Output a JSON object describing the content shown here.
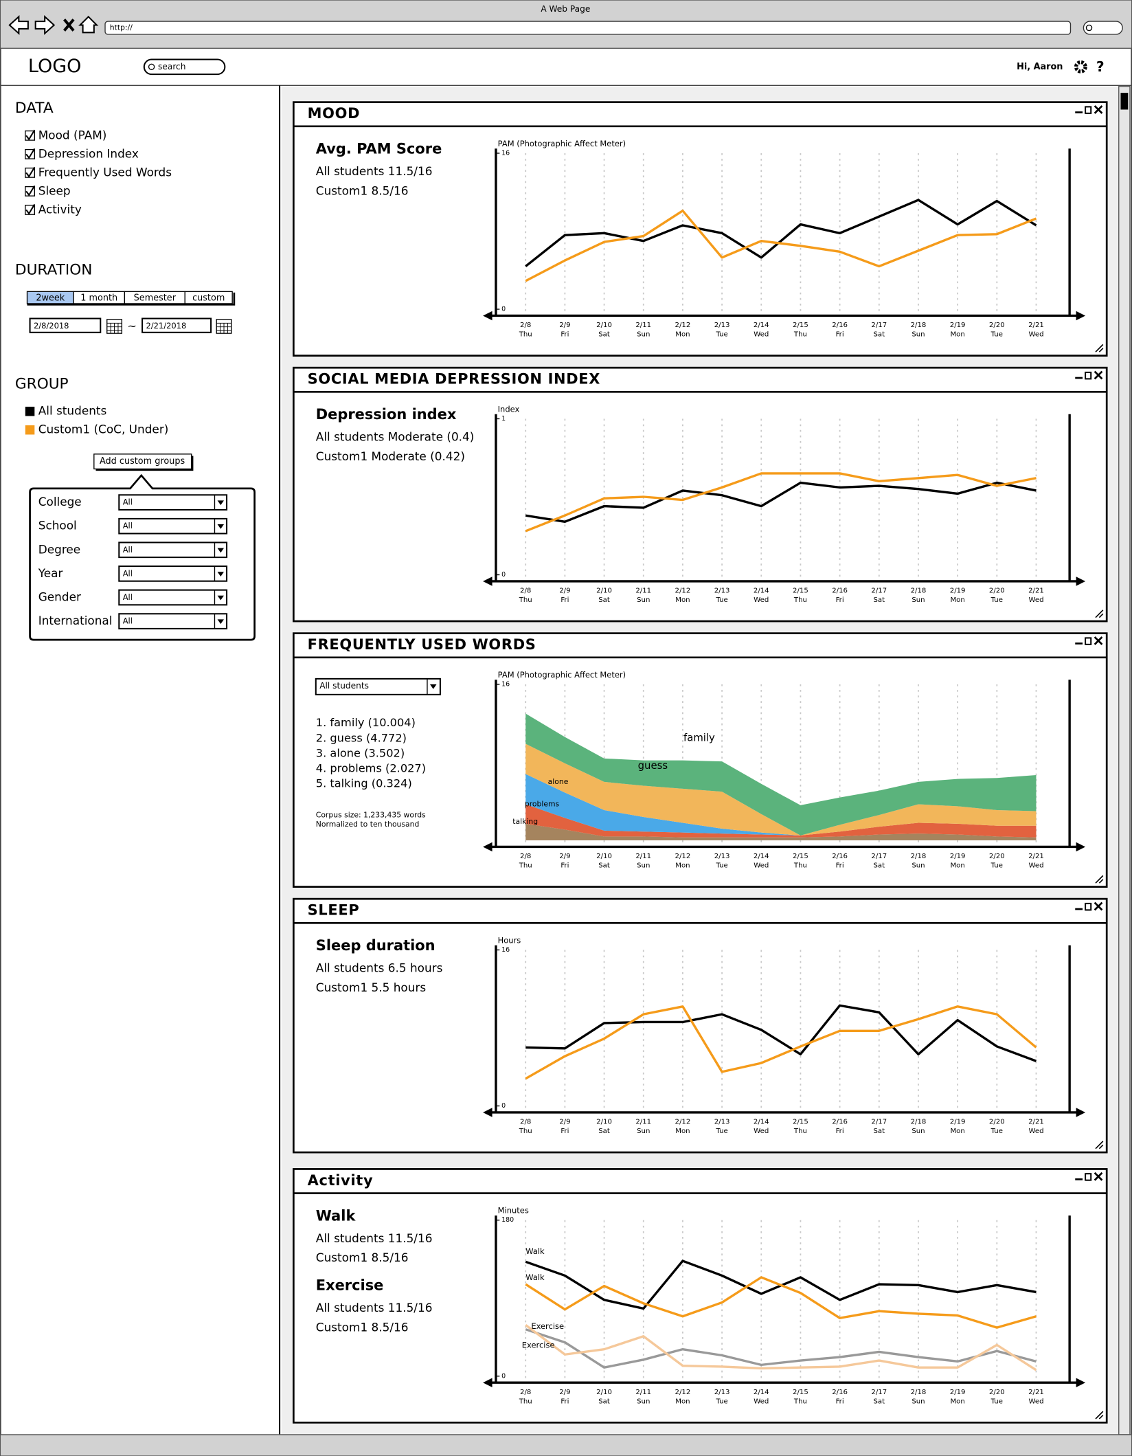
{
  "browser": {
    "title": "A Web Page",
    "url": "http://"
  },
  "header": {
    "logo": "LOGO",
    "search_placeholder": "search",
    "greeting": "Hi, Aaron",
    "help": "?"
  },
  "sidebar": {
    "data_title": "DATA",
    "data_items": [
      {
        "label": "Mood (PAM)",
        "checked": true
      },
      {
        "label": "Depression Index",
        "checked": true
      },
      {
        "label": "Frequently Used Words",
        "checked": true
      },
      {
        "label": "Sleep",
        "checked": true
      },
      {
        "label": "Activity",
        "checked": true
      }
    ],
    "duration_title": "DURATION",
    "duration_tabs": [
      "2week",
      "1 month",
      "Semester",
      "custom"
    ],
    "selected_tab": 0,
    "start_date": "2/8/2018",
    "separator": "~",
    "end_date": "2/21/2018",
    "group_title": "GROUP",
    "groups": [
      {
        "name": "All students",
        "color": "#000000"
      },
      {
        "name": "Custom1 (CoC, Under)",
        "color": "#f59b1a"
      }
    ],
    "add_button": "Add custom groups",
    "filters": [
      {
        "label": "College",
        "value": "All"
      },
      {
        "label": "School",
        "value": "All"
      },
      {
        "label": "Degree",
        "value": "All"
      },
      {
        "label": "Year",
        "value": "All"
      },
      {
        "label": "Gender",
        "value": "All"
      },
      {
        "label": "International",
        "value": "All"
      }
    ]
  },
  "panels": [
    {
      "title": "MOOD",
      "summary": [
        {
          "heading": "Avg. PAM Score",
          "lines": [
            "All students 11.5/16",
            "Custom1  8.5/16"
          ]
        }
      ],
      "chart": {
        "type": "line",
        "y_label": "PAM (Photographic Affect Meter)",
        "categories": [
          "2/8",
          "2/9",
          "2/10",
          "2/11",
          "2/12",
          "2/13",
          "2/14",
          "2/15",
          "2/16",
          "2/17",
          "2/18",
          "2/19",
          "2/20",
          "2/21"
        ],
        "days": [
          "Thu",
          "Fri",
          "Sat",
          "Sun",
          "Mon",
          "Tue",
          "Wed",
          "Thu",
          "Fri",
          "Sat",
          "Sun",
          "Mon",
          "Tue",
          "Wed"
        ],
        "ylim": [
          0,
          16
        ],
        "yticks": [
          0,
          16
        ],
        "grid": true,
        "series": [
          {
            "color": "#000000",
            "values": [
              4.4,
              7.6,
              7.8,
              7.0,
              8.6,
              7.8,
              5.3,
              8.7,
              7.8,
              9.5,
              11.2,
              8.7,
              11.1,
              8.6
            ]
          },
          {
            "color": "#f59b1a",
            "values": [
              2.9,
              5.0,
              6.9,
              7.5,
              10.1,
              5.3,
              7.0,
              6.5,
              5.9,
              4.4,
              6.0,
              7.6,
              7.7,
              9.3
            ]
          }
        ]
      }
    },
    {
      "title": "SOCIAL MEDIA DEPRESSION INDEX",
      "summary": [
        {
          "heading": "Depression index",
          "lines": [
            "All students Moderate (0.4)",
            "Custom1  Moderate (0.42)"
          ]
        }
      ],
      "chart": {
        "type": "line",
        "y_label": "Index",
        "categories": [
          "2/8",
          "2/9",
          "2/10",
          "2/11",
          "2/12",
          "2/13",
          "2/14",
          "2/15",
          "2/16",
          "2/17",
          "2/18",
          "2/19",
          "2/20",
          "2/21"
        ],
        "days": [
          "Thu",
          "Fri",
          "Sat",
          "Sun",
          "Mon",
          "Tue",
          "Wed",
          "Thu",
          "Fri",
          "Sat",
          "Sun",
          "Mon",
          "Tue",
          "Wed"
        ],
        "ylim": [
          0,
          1
        ],
        "yticks": [
          0,
          1
        ],
        "grid": true,
        "series": [
          {
            "color": "#000000",
            "values": [
              0.38,
              0.34,
              0.44,
              0.43,
              0.54,
              0.51,
              0.44,
              0.59,
              0.56,
              0.57,
              0.55,
              0.52,
              0.59,
              0.54
            ]
          },
          {
            "color": "#f59b1a",
            "values": [
              0.28,
              0.38,
              0.49,
              0.5,
              0.48,
              0.56,
              0.65,
              0.65,
              0.65,
              0.6,
              0.62,
              0.64,
              0.57,
              0.62
            ]
          }
        ]
      }
    },
    {
      "title": "FREQUENTLY USED WORDS",
      "selector": "All students",
      "word_list": [
        "1. family (10.004)",
        "2. guess (4.772)",
        "3. alone (3.502)",
        "4. problems (2.027)",
        "5. talking (0.324)"
      ],
      "notes": [
        "Corpus size: 1,233,435 words",
        "Normalized to ten thousand"
      ],
      "chart": {
        "type": "area",
        "stacked": true,
        "y_label": "PAM (Photographic Affect Meter)",
        "categories": [
          "2/8",
          "2/9",
          "2/10",
          "2/11",
          "2/12",
          "2/13",
          "2/14",
          "2/15",
          "2/16",
          "2/17",
          "2/18",
          "2/19",
          "2/20",
          "2/21"
        ],
        "days": [
          "Thu",
          "Fri",
          "Sat",
          "Sun",
          "Mon",
          "Tue",
          "Wed",
          "Thu",
          "Fri",
          "Sat",
          "Sun",
          "Mon",
          "Tue",
          "Wed"
        ],
        "ylim": [
          0,
          16
        ],
        "yticks": [
          16
        ],
        "grid": true,
        "series": [
          {
            "name": "family",
            "color": "#5bb37c",
            "values": [
              3.1,
              2.7,
              2.4,
              2.6,
              2.9,
              3.1,
              3.1,
              3.1,
              2.8,
              2.5,
              2.3,
              2.8,
              3.3,
              3.7
            ]
          },
          {
            "name": "guess",
            "color": "#f2b65a",
            "values": [
              3.1,
              3.0,
              2.9,
              3.2,
              3.5,
              3.8,
              1.9,
              0,
              0.7,
              1.2,
              1.9,
              1.8,
              1.6,
              1.5
            ]
          },
          {
            "name": "alone",
            "color": "#4aa9e8",
            "values": [
              3.1,
              2.6,
              2.1,
              1.5,
              1.0,
              0.5,
              0.2,
              0,
              0,
              0,
              0,
              0,
              0,
              0
            ]
          },
          {
            "name": "problems",
            "color": "#e2623f",
            "values": [
              2.0,
              1.2,
              0.6,
              0.5,
              0.5,
              0.4,
              0.3,
              0.2,
              0.5,
              0.8,
              1.1,
              1.1,
              1.1,
              1.2
            ]
          },
          {
            "name": "talking",
            "color": "#a5845e",
            "values": [
              1.7,
              1.1,
              0.4,
              0.4,
              0.3,
              0.3,
              0.3,
              0.3,
              0.4,
              0.6,
              0.7,
              0.6,
              0.4,
              0.3
            ]
          }
        ]
      }
    },
    {
      "title": "SLEEP",
      "summary": [
        {
          "heading": "Sleep duration",
          "lines": [
            "All students 6.5 hours",
            "Custom1  5.5 hours"
          ]
        }
      ],
      "chart": {
        "type": "line",
        "y_label": "Hours",
        "categories": [
          "2/8",
          "2/9",
          "2/10",
          "2/11",
          "2/12",
          "2/13",
          "2/14",
          "2/15",
          "2/16",
          "2/17",
          "2/18",
          "2/19",
          "2/20",
          "2/21"
        ],
        "days": [
          "Thu",
          "Fri",
          "Sat",
          "Sun",
          "Mon",
          "Tue",
          "Wed",
          "Thu",
          "Fri",
          "Sat",
          "Sun",
          "Mon",
          "Tue",
          "Wed"
        ],
        "ylim": [
          0,
          16
        ],
        "yticks": [
          0,
          16
        ],
        "grid": true,
        "series": [
          {
            "color": "#000000",
            "values": [
              6.0,
              5.9,
              8.5,
              8.6,
              8.6,
              9.4,
              7.8,
              5.3,
              10.3,
              9.6,
              5.3,
              8.8,
              6.1,
              4.6
            ]
          },
          {
            "color": "#f59b1a",
            "values": [
              2.8,
              5.1,
              6.9,
              9.4,
              10.2,
              3.5,
              4.4,
              6.1,
              7.7,
              7.7,
              8.9,
              10.2,
              9.4,
              6.0
            ]
          }
        ]
      }
    },
    {
      "title": "Activity",
      "summary": [
        {
          "heading": "Walk",
          "lines": [
            "All students 11.5/16",
            "Custom1  8.5/16"
          ]
        },
        {
          "heading": "Exercise",
          "lines": [
            "All students 11.5/16",
            "Custom1  8.5/16"
          ]
        }
      ],
      "chart": {
        "type": "line",
        "y_label": "Minutes",
        "categories": [
          "2/8",
          "2/9",
          "2/10",
          "2/11",
          "2/12",
          "2/13",
          "2/14",
          "2/15",
          "2/16",
          "2/17",
          "2/18",
          "2/19",
          "2/20",
          "2/21"
        ],
        "days": [
          "Thu",
          "Fri",
          "Sat",
          "Sun",
          "Mon",
          "Tue",
          "Wed",
          "Thu",
          "Fri",
          "Sat",
          "Sun",
          "Mon",
          "Tue",
          "Wed"
        ],
        "ylim": [
          0,
          180
        ],
        "yticks": [
          0,
          180
        ],
        "grid": true,
        "series": [
          {
            "name": "Walk",
            "color": "#000000",
            "values": [
              132,
              116,
              88,
              78,
              133,
              116,
              95,
              114,
              88,
              106,
              105,
              97,
              105,
              97
            ]
          },
          {
            "name": "Walk",
            "color": "#f59b1a",
            "values": [
              106,
              77,
              104,
              84,
              69,
              85,
              114,
              96,
              67,
              75,
              72,
              70,
              56,
              69
            ]
          },
          {
            "name": "Exercise",
            "color": "#999999",
            "values": [
              54,
              39,
              10,
              19,
              31,
              24,
              13,
              18,
              22,
              28,
              22,
              17,
              29,
              17
            ]
          },
          {
            "name": "Exercise",
            "color": "#f5c89a",
            "values": [
              59,
              25,
              31,
              46,
              12,
              11,
              9,
              10,
              11,
              18,
              10,
              10,
              36,
              7
            ]
          }
        ]
      }
    }
  ]
}
